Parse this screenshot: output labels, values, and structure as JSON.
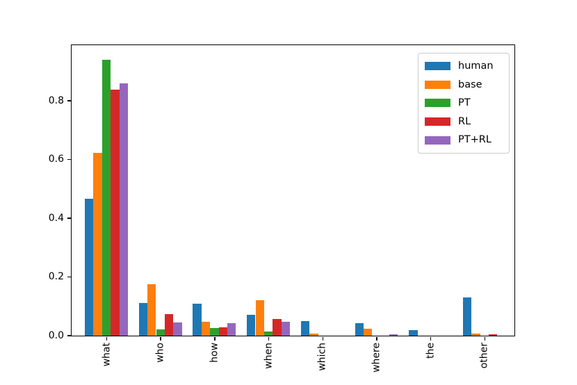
{
  "figure": {
    "background": "#ffffff",
    "axis_color": "#000000"
  },
  "chart_data": {
    "type": "bar",
    "title": "",
    "xlabel": "",
    "ylabel": "",
    "categories": [
      "what",
      "who",
      "how",
      "when",
      "which",
      "where",
      "the",
      "other"
    ],
    "series": [
      {
        "name": "human",
        "color": "#1f77b4",
        "values": [
          0.466,
          0.11,
          0.108,
          0.069,
          0.048,
          0.041,
          0.017,
          0.128
        ]
      },
      {
        "name": "base",
        "color": "#ff7f0e",
        "values": [
          0.622,
          0.173,
          0.046,
          0.119,
          0.007,
          0.023,
          0.0,
          0.006
        ]
      },
      {
        "name": "PT",
        "color": "#2ca02c",
        "values": [
          0.939,
          0.02,
          0.024,
          0.014,
          0.0,
          0.0,
          0.0,
          0.0
        ]
      },
      {
        "name": "RL",
        "color": "#d62728",
        "values": [
          0.836,
          0.073,
          0.028,
          0.055,
          0.0,
          0.0,
          0.0,
          0.003
        ]
      },
      {
        "name": "PT+RL",
        "color": "#9467bd",
        "values": [
          0.858,
          0.045,
          0.042,
          0.047,
          0.0,
          0.004,
          0.0,
          0.0
        ]
      }
    ],
    "yticks": [
      0.0,
      0.2,
      0.4,
      0.6,
      0.8
    ],
    "ytick_labels": [
      "0.0",
      "0.2",
      "0.4",
      "0.6",
      "0.8"
    ],
    "ylim": [
      0.0,
      0.989
    ],
    "grid": false,
    "legend": {
      "position": "upper right",
      "entries": [
        "human",
        "base",
        "PT",
        "RL",
        "PT+RL"
      ]
    }
  }
}
